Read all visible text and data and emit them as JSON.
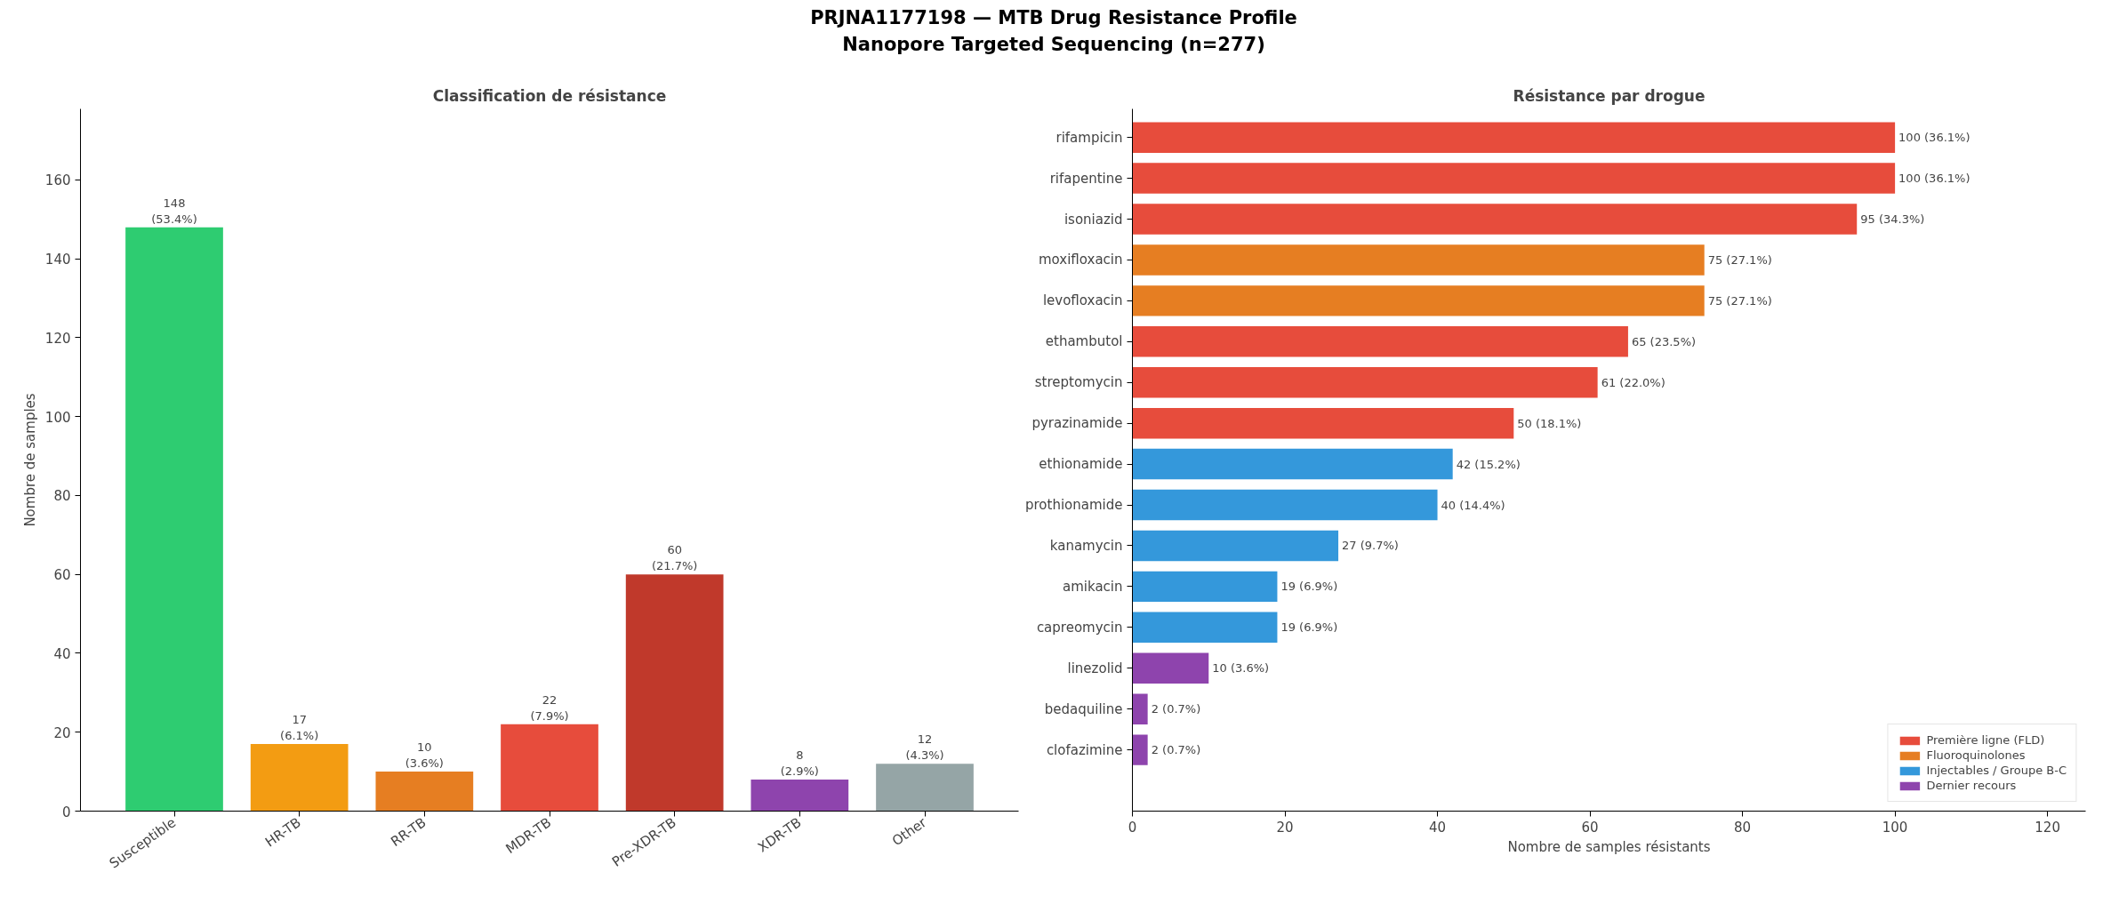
{
  "chart_data": [
    {
      "type": "bar",
      "title": "Classification de résistance",
      "annotations": [
        "PRJNA1177198 — MTB Drug Resistance Profile\nNanopore Targeted Sequencing (n=277)"
      ],
      "ylabel": "Nombre de samples",
      "categories": [
        "Susceptible",
        "HR-TB",
        "RR-TB",
        "MDR-TB",
        "Pre-XDR-TB",
        "XDR-TB",
        "Other"
      ],
      "values": [
        148,
        17,
        10,
        22,
        60,
        8,
        12
      ],
      "colors": [
        "#2ecc71",
        "#f39c12",
        "#e67e22",
        "#e74c3c",
        "#c0392b",
        "#8e44ad",
        "#95a5a6"
      ],
      "value_labels": [
        "148\n(53.4%)",
        "17\n(6.1%)",
        "10\n(3.6%)",
        "22\n(7.9%)",
        "60\n(21.7%)",
        "8\n(2.9%)",
        "12\n(4.3%)"
      ],
      "ylim": [
        0,
        178
      ],
      "yticks": [
        0,
        20,
        40,
        60,
        80,
        100,
        120,
        140,
        160
      ],
      "grid": false,
      "legend": false
    },
    {
      "type": "bar",
      "orientation": "horizontal",
      "title": "Résistance par drogue",
      "xlabel": "Nombre de samples résistants",
      "categories": [
        "rifampicin",
        "rifapentine",
        "isoniazid",
        "moxifloxacin",
        "levofloxacin",
        "ethambutol",
        "streptomycin",
        "pyrazinamide",
        "ethionamide",
        "prothionamide",
        "kanamycin",
        "amikacin",
        "capreomycin",
        "linezolid",
        "bedaquiline",
        "clofazimine"
      ],
      "series": [
        {
          "name": "Première ligne (FLD)",
          "color": "#e74c3c",
          "values": [
            100,
            100,
            95,
            null,
            null,
            65,
            61,
            50,
            null,
            null,
            null,
            null,
            null,
            null,
            null,
            null
          ],
          "value_labels": [
            "100 (36.1%)",
            "100 (36.1%)",
            "95 (34.3%)",
            null,
            null,
            "65 (23.5%)",
            "61 (22.0%)",
            "50 (18.1%)",
            null,
            null,
            null,
            null,
            null,
            null,
            null,
            null
          ]
        },
        {
          "name": "Fluoroquinolones",
          "color": "#e67e22",
          "values": [
            null,
            null,
            null,
            75,
            75,
            null,
            null,
            null,
            null,
            null,
            null,
            null,
            null,
            null,
            null,
            null
          ],
          "value_labels": [
            null,
            null,
            null,
            "75 (27.1%)",
            "75 (27.1%)",
            null,
            null,
            null,
            null,
            null,
            null,
            null,
            null,
            null,
            null,
            null
          ]
        },
        {
          "name": "Injectables / Groupe B-C",
          "color": "#3498db",
          "values": [
            null,
            null,
            null,
            null,
            null,
            null,
            null,
            null,
            42,
            40,
            27,
            19,
            19,
            null,
            null,
            null
          ],
          "value_labels": [
            null,
            null,
            null,
            null,
            null,
            null,
            null,
            null,
            "42 (15.2%)",
            "40 (14.4%)",
            "27 (9.7%)",
            "19 (6.9%)",
            "19 (6.9%)",
            null,
            null,
            null
          ]
        },
        {
          "name": "Dernier recours",
          "color": "#8e44ad",
          "values": [
            null,
            null,
            null,
            null,
            null,
            null,
            null,
            null,
            null,
            null,
            null,
            null,
            null,
            10,
            2,
            2
          ],
          "value_labels": [
            null,
            null,
            null,
            null,
            null,
            null,
            null,
            null,
            null,
            null,
            null,
            null,
            null,
            "10 (3.6%)",
            "2 (0.7%)",
            "2 (0.7%)"
          ]
        }
      ],
      "xlim": [
        0,
        125
      ],
      "xticks": [
        0,
        20,
        40,
        60,
        80,
        100,
        120
      ],
      "grid": false,
      "legend": "bottom right"
    }
  ]
}
